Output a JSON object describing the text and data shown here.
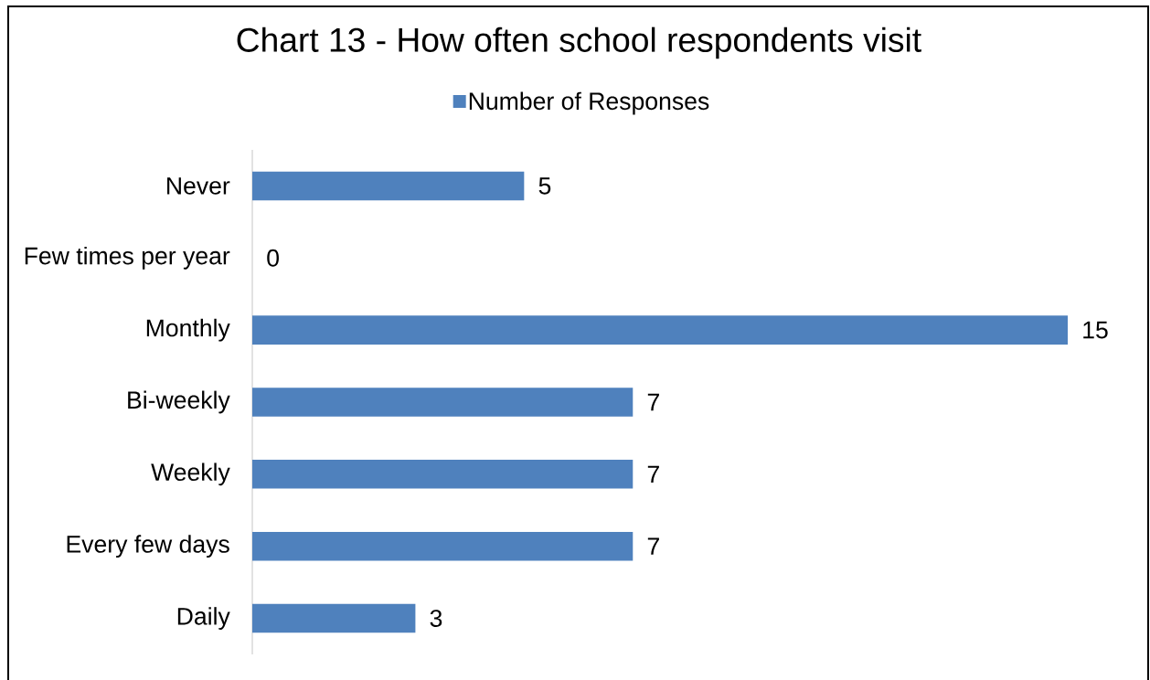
{
  "chart_data": {
    "type": "bar",
    "orientation": "horizontal",
    "title": "Chart 13 - How often school respondents visit",
    "categories": [
      "Never",
      "Few times per year",
      "Monthly",
      "Bi-weekly",
      "Weekly",
      "Every few days",
      "Daily"
    ],
    "series": [
      {
        "name": "Number of Responses",
        "color": "#4f81bd",
        "values": [
          5,
          0,
          15,
          7,
          7,
          7,
          3
        ]
      }
    ],
    "data_labels": true,
    "legend": "top",
    "tick_labels": "y"
  }
}
